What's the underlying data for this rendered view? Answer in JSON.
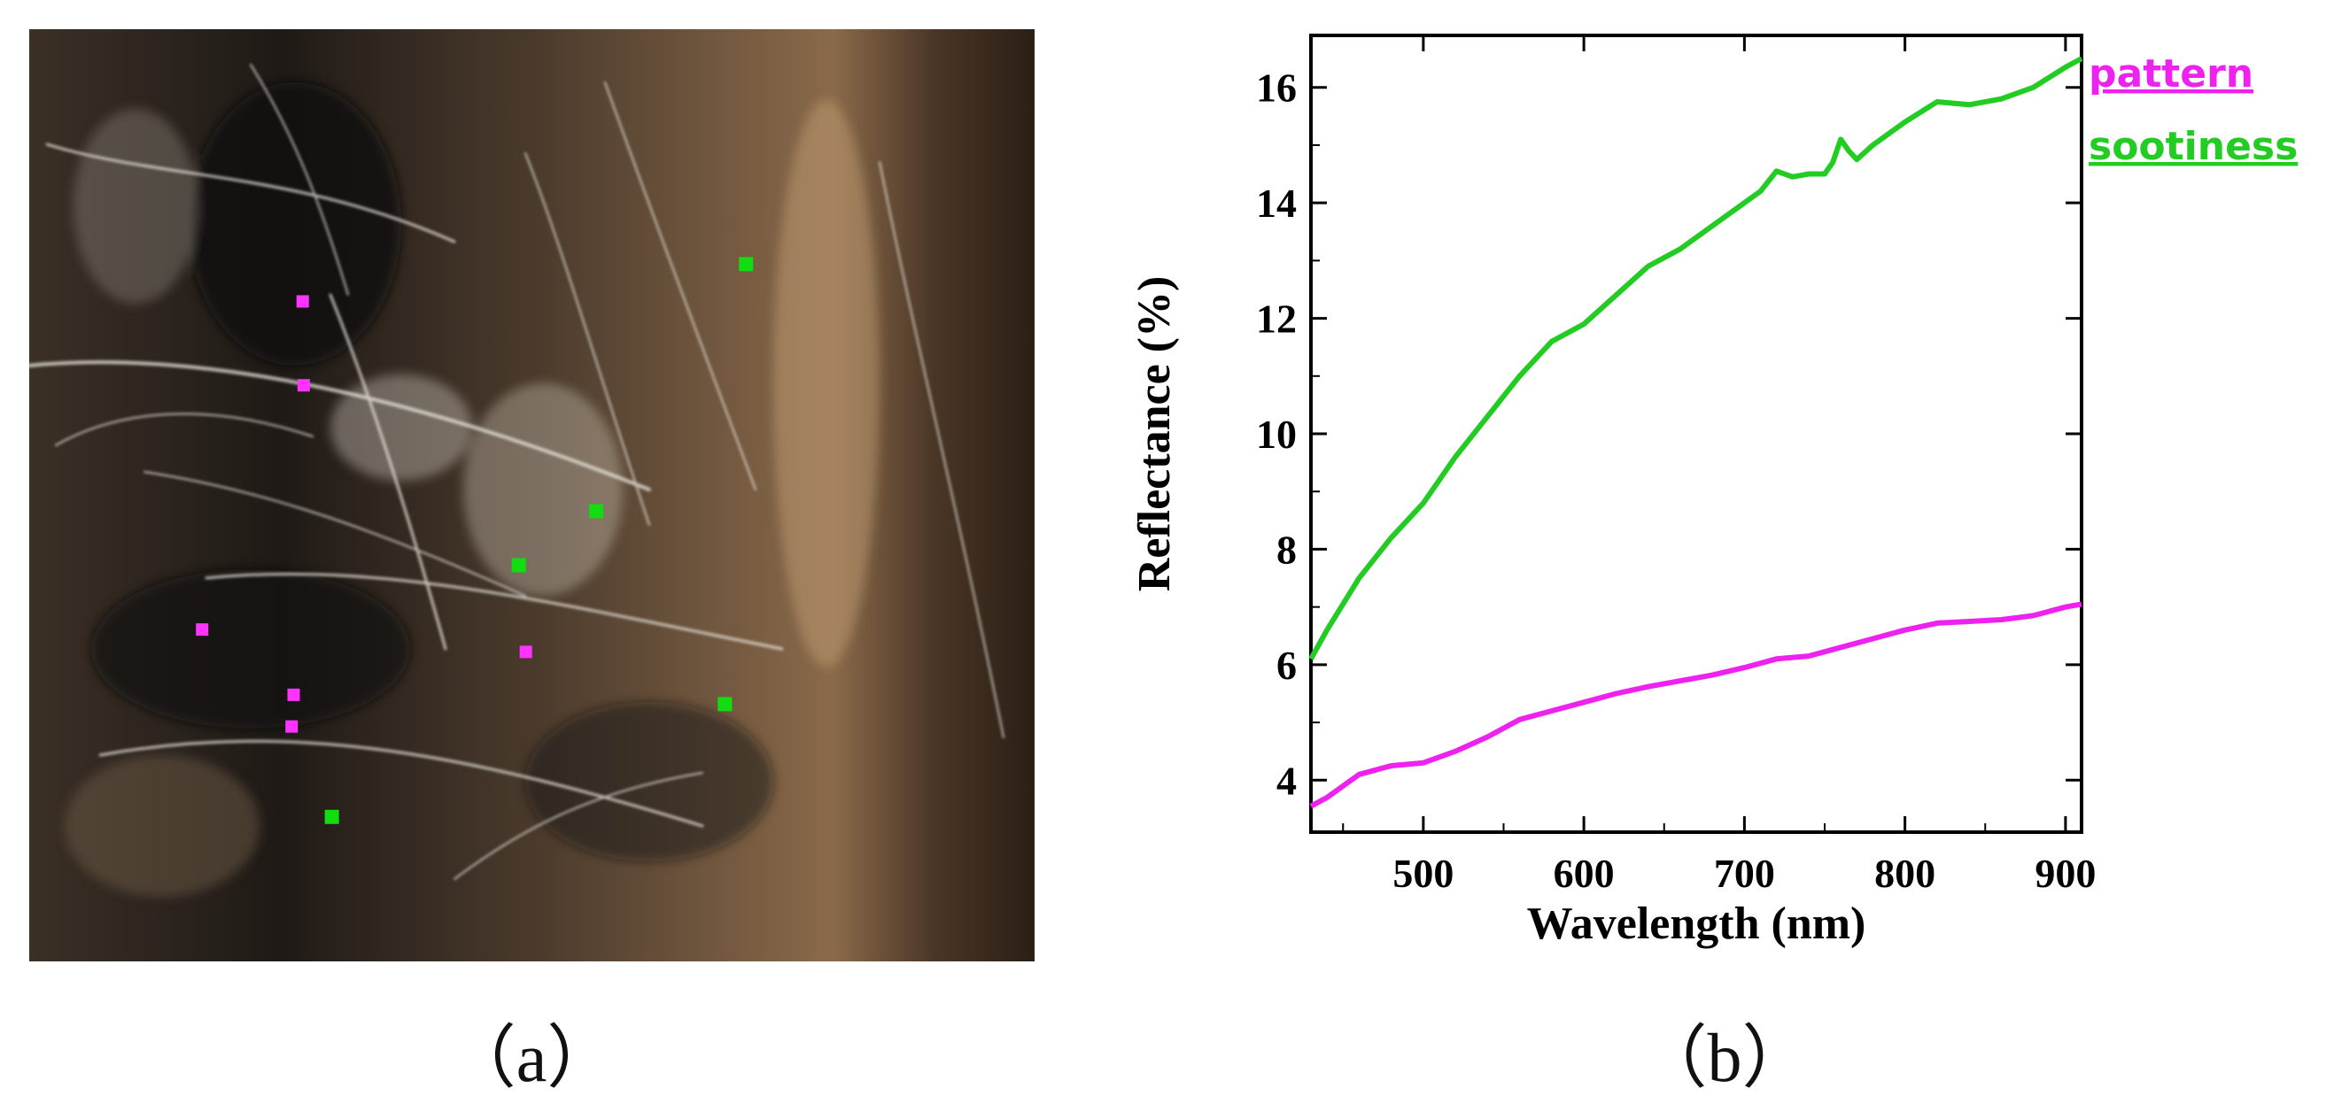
{
  "panels": {
    "a_label": "（a）",
    "b_label": "（b）"
  },
  "photo": {
    "description_marker_colors": {
      "pattern": "#ff33ff",
      "sootiness": "#11dd11"
    },
    "pattern_markers": [
      {
        "u": 0.272,
        "v": 0.292
      },
      {
        "u": 0.273,
        "v": 0.382
      },
      {
        "u": 0.172,
        "v": 0.644
      },
      {
        "u": 0.263,
        "v": 0.714
      },
      {
        "u": 0.261,
        "v": 0.748
      },
      {
        "u": 0.494,
        "v": 0.668
      }
    ],
    "sootiness_markers": [
      {
        "u": 0.713,
        "v": 0.252
      },
      {
        "u": 0.564,
        "v": 0.517
      },
      {
        "u": 0.487,
        "v": 0.575
      },
      {
        "u": 0.692,
        "v": 0.724
      },
      {
        "u": 0.301,
        "v": 0.845
      }
    ]
  },
  "chart_data": {
    "type": "line",
    "xlabel": "Wavelength (nm)",
    "ylabel": "Reflectance (%)",
    "xlim": [
      430,
      910
    ],
    "ylim": [
      3.1,
      16.9
    ],
    "xticks": [
      500,
      600,
      700,
      800,
      900
    ],
    "yticks": [
      4,
      6,
      8,
      10,
      12,
      14,
      16
    ],
    "grid": false,
    "legend_position": "right",
    "series": [
      {
        "name": "pattern",
        "color": "#ee22ee",
        "x": [
          430,
          440,
          460,
          480,
          500,
          520,
          540,
          560,
          580,
          600,
          620,
          640,
          660,
          680,
          700,
          720,
          740,
          760,
          780,
          800,
          820,
          840,
          860,
          880,
          900,
          910
        ],
        "y": [
          3.55,
          3.7,
          4.1,
          4.25,
          4.3,
          4.5,
          4.75,
          5.05,
          5.2,
          5.35,
          5.5,
          5.62,
          5.72,
          5.82,
          5.95,
          6.1,
          6.15,
          6.3,
          6.45,
          6.6,
          6.72,
          6.75,
          6.78,
          6.85,
          7.0,
          7.05
        ]
      },
      {
        "name": "sootiness",
        "color": "#22cc22",
        "x": [
          430,
          440,
          460,
          480,
          500,
          520,
          540,
          560,
          580,
          600,
          620,
          640,
          660,
          680,
          700,
          710,
          720,
          730,
          740,
          750,
          755,
          760,
          765,
          770,
          780,
          800,
          820,
          840,
          860,
          880,
          900,
          910
        ],
        "y": [
          6.1,
          6.6,
          7.5,
          8.2,
          8.8,
          9.6,
          10.3,
          11.0,
          11.6,
          11.9,
          12.4,
          12.9,
          13.2,
          13.6,
          14.0,
          14.2,
          14.55,
          14.45,
          14.5,
          14.5,
          14.7,
          15.1,
          14.9,
          14.75,
          15.0,
          15.4,
          15.75,
          15.7,
          15.8,
          16.0,
          16.35,
          16.5
        ]
      }
    ]
  }
}
